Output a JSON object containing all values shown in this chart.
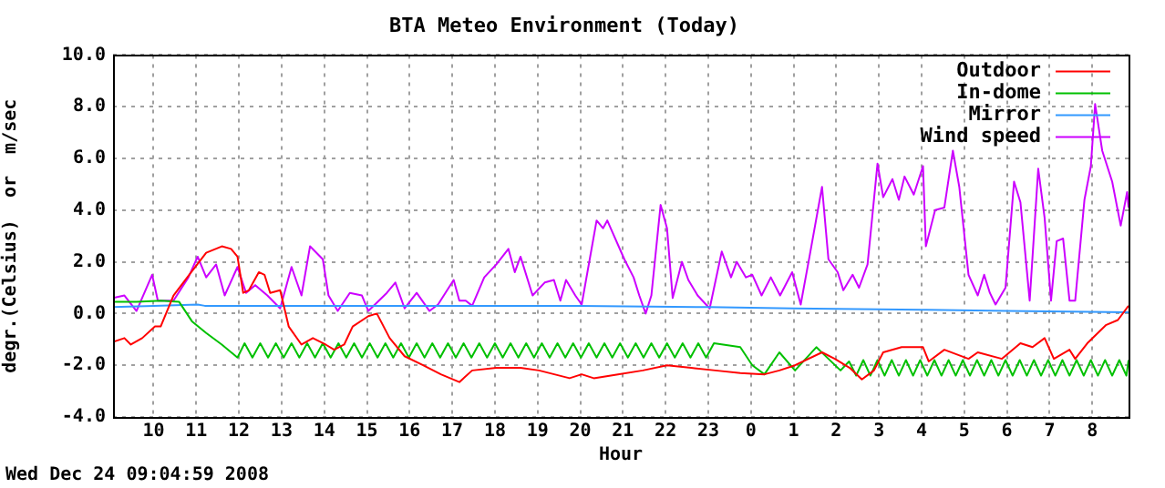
{
  "chart_data": {
    "type": "line",
    "title": "BTA Meteo Environment (Today)",
    "xlabel": "Hour",
    "ylabel": "degr.(Celsius)  or  m/sec",
    "annotations": [
      "Wed Dec 24 09:04:59 2008"
    ],
    "xlim": [
      "2008-12-23T09:03",
      "2008-12-24T08:51"
    ],
    "ylim": [
      -4,
      10
    ],
    "xticks": [
      {
        "value": "2008-12-23T10:00",
        "label": "10"
      },
      {
        "value": "2008-12-23T11:00",
        "label": "11"
      },
      {
        "value": "2008-12-23T12:00",
        "label": "12"
      },
      {
        "value": "2008-12-23T13:00",
        "label": "13"
      },
      {
        "value": "2008-12-23T14:00",
        "label": "14"
      },
      {
        "value": "2008-12-23T15:00",
        "label": "15"
      },
      {
        "value": "2008-12-23T16:00",
        "label": "16"
      },
      {
        "value": "2008-12-23T17:00",
        "label": "17"
      },
      {
        "value": "2008-12-23T18:00",
        "label": "18"
      },
      {
        "value": "2008-12-23T19:00",
        "label": "19"
      },
      {
        "value": "2008-12-23T20:00",
        "label": "20"
      },
      {
        "value": "2008-12-23T21:00",
        "label": "21"
      },
      {
        "value": "2008-12-23T22:00",
        "label": "22"
      },
      {
        "value": "2008-12-23T23:00",
        "label": "23"
      },
      {
        "value": "2008-12-24T00:00",
        "label": "0"
      },
      {
        "value": "2008-12-24T01:00",
        "label": "1"
      },
      {
        "value": "2008-12-24T02:00",
        "label": "2"
      },
      {
        "value": "2008-12-24T03:00",
        "label": "3"
      },
      {
        "value": "2008-12-24T04:00",
        "label": "4"
      },
      {
        "value": "2008-12-24T05:00",
        "label": "5"
      },
      {
        "value": "2008-12-24T06:00",
        "label": "6"
      },
      {
        "value": "2008-12-24T07:00",
        "label": "7"
      },
      {
        "value": "2008-12-24T08:00",
        "label": "8"
      }
    ],
    "yticks": [
      {
        "value": -4,
        "label": "-4.0"
      },
      {
        "value": -2,
        "label": "-2.0"
      },
      {
        "value": 0,
        "label": "0.0"
      },
      {
        "value": 2,
        "label": "2.0"
      },
      {
        "value": 4,
        "label": "4.0"
      },
      {
        "value": 6,
        "label": "6.0"
      },
      {
        "value": 8,
        "label": "8.0"
      },
      {
        "value": 10,
        "label": "10.0"
      }
    ],
    "grid": true,
    "legend": "top right",
    "marker": "none",
    "line_style": "solid",
    "series": [
      {
        "name": "Outdoor",
        "color": "#ff0000",
        "x": [
          "2008-12-23T09:03",
          "2008-12-23T09:19",
          "2008-12-23T09:28",
          "2008-12-23T09:44",
          "2008-12-23T10:02",
          "2008-12-23T10:10",
          "2008-12-23T10:28",
          "2008-12-23T10:53",
          "2008-12-23T11:14",
          "2008-12-23T11:36",
          "2008-12-23T11:49",
          "2008-12-23T11:58",
          "2008-12-23T12:06",
          "2008-12-23T12:14",
          "2008-12-23T12:28",
          "2008-12-23T12:36",
          "2008-12-23T12:44",
          "2008-12-23T12:58",
          "2008-12-23T13:10",
          "2008-12-23T13:28",
          "2008-12-23T13:44",
          "2008-12-23T14:02",
          "2008-12-23T14:14",
          "2008-12-23T14:28",
          "2008-12-23T14:40",
          "2008-12-23T15:02",
          "2008-12-23T15:14",
          "2008-12-23T15:32",
          "2008-12-23T15:53",
          "2008-12-23T16:19",
          "2008-12-23T16:44",
          "2008-12-23T17:10",
          "2008-12-23T17:28",
          "2008-12-23T18:02",
          "2008-12-23T18:36",
          "2008-12-23T19:02",
          "2008-12-23T19:45",
          "2008-12-23T20:02",
          "2008-12-23T20:19",
          "2008-12-23T20:53",
          "2008-12-23T21:28",
          "2008-12-23T22:02",
          "2008-12-23T22:36",
          "2008-12-23T23:10",
          "2008-12-23T23:45",
          "2008-12-24T00:19",
          "2008-12-24T00:40",
          "2008-12-24T01:02",
          "2008-12-24T01:40",
          "2008-12-24T01:58",
          "2008-12-24T02:19",
          "2008-12-24T02:36",
          "2008-12-24T02:53",
          "2008-12-24T03:06",
          "2008-12-24T03:32",
          "2008-12-24T04:02",
          "2008-12-24T04:10",
          "2008-12-24T04:32",
          "2008-12-24T05:06",
          "2008-12-24T05:19",
          "2008-12-24T05:53",
          "2008-12-24T06:19",
          "2008-12-24T06:36",
          "2008-12-24T06:53",
          "2008-12-24T07:06",
          "2008-12-24T07:28",
          "2008-12-24T07:36",
          "2008-12-24T07:53",
          "2008-12-24T08:19",
          "2008-12-24T08:36",
          "2008-12-24T08:51"
        ],
        "values": [
          -1.1,
          -0.95,
          -1.2,
          -0.95,
          -0.5,
          -0.5,
          0.7,
          1.6,
          2.35,
          2.6,
          2.5,
          2.2,
          0.8,
          0.9,
          1.6,
          1.5,
          0.8,
          0.9,
          -0.5,
          -1.2,
          -0.95,
          -1.2,
          -1.4,
          -1.2,
          -0.5,
          -0.1,
          0,
          -0.95,
          -1.65,
          -2,
          -2.35,
          -2.65,
          -2.2,
          -2.1,
          -2.1,
          -2.2,
          -2.5,
          -2.35,
          -2.5,
          -2.35,
          -2.2,
          -2,
          -2.1,
          -2.2,
          -2.3,
          -2.35,
          -2.2,
          -2,
          -1.5,
          -1.75,
          -2.1,
          -2.55,
          -2.2,
          -1.5,
          -1.3,
          -1.3,
          -1.85,
          -1.4,
          -1.75,
          -1.5,
          -1.75,
          -1.15,
          -1.3,
          -0.95,
          -1.75,
          -1.4,
          -1.75,
          -1.15,
          -0.45,
          -0.25,
          0.3
        ]
      },
      {
        "name": "In-dome",
        "color": "#00c000",
        "x": [
          "2008-12-23T09:03",
          "2008-12-23T09:36",
          "2008-12-23T10:10",
          "2008-12-23T10:36",
          "2008-12-23T10:54",
          "2008-12-23T11:14",
          "2008-12-23T11:36",
          "2008-12-23T11:58",
          "2008-12-23T12:08",
          "2008-12-23T12:19",
          "2008-12-23T12:30",
          "2008-12-23T12:41",
          "2008-12-23T12:52",
          "2008-12-23T13:03",
          "2008-12-23T13:14",
          "2008-12-23T13:25",
          "2008-12-23T13:36",
          "2008-12-23T13:47",
          "2008-12-23T13:58",
          "2008-12-23T14:09",
          "2008-12-23T14:20",
          "2008-12-23T14:31",
          "2008-12-23T14:42",
          "2008-12-23T14:53",
          "2008-12-23T15:04",
          "2008-12-23T15:15",
          "2008-12-23T15:26",
          "2008-12-23T15:37",
          "2008-12-23T15:48",
          "2008-12-23T15:59",
          "2008-12-23T16:10",
          "2008-12-23T16:21",
          "2008-12-23T16:32",
          "2008-12-23T16:43",
          "2008-12-23T16:54",
          "2008-12-23T17:05",
          "2008-12-23T17:16",
          "2008-12-23T17:27",
          "2008-12-23T17:38",
          "2008-12-23T17:49",
          "2008-12-23T18:00",
          "2008-12-23T18:11",
          "2008-12-23T18:22",
          "2008-12-23T18:33",
          "2008-12-23T18:44",
          "2008-12-23T18:55",
          "2008-12-23T19:06",
          "2008-12-23T19:17",
          "2008-12-23T19:28",
          "2008-12-23T19:39",
          "2008-12-23T19:50",
          "2008-12-23T20:01",
          "2008-12-23T20:12",
          "2008-12-23T20:23",
          "2008-12-23T20:34",
          "2008-12-23T20:45",
          "2008-12-23T20:56",
          "2008-12-23T21:07",
          "2008-12-23T21:18",
          "2008-12-23T21:29",
          "2008-12-23T21:40",
          "2008-12-23T21:51",
          "2008-12-23T22:02",
          "2008-12-23T22:13",
          "2008-12-23T22:24",
          "2008-12-23T22:35",
          "2008-12-23T22:46",
          "2008-12-23T22:57",
          "2008-12-23T23:08",
          "2008-12-23T23:45",
          "2008-12-24T00:02",
          "2008-12-24T00:19",
          "2008-12-24T00:40",
          "2008-12-24T01:02",
          "2008-12-24T01:32",
          "2008-12-24T01:49",
          "2008-12-24T02:06",
          "2008-12-24T02:18",
          "2008-12-24T02:28",
          "2008-12-24T02:38",
          "2008-12-24T02:48",
          "2008-12-24T02:58",
          "2008-12-24T03:08",
          "2008-12-24T03:18",
          "2008-12-24T03:28",
          "2008-12-24T03:38",
          "2008-12-24T03:48",
          "2008-12-24T03:58",
          "2008-12-24T04:08",
          "2008-12-24T04:18",
          "2008-12-24T04:28",
          "2008-12-24T04:38",
          "2008-12-24T04:48",
          "2008-12-24T04:58",
          "2008-12-24T05:08",
          "2008-12-24T05:18",
          "2008-12-24T05:28",
          "2008-12-24T05:38",
          "2008-12-24T05:48",
          "2008-12-24T05:58",
          "2008-12-24T06:08",
          "2008-12-24T06:18",
          "2008-12-24T06:28",
          "2008-12-24T06:38",
          "2008-12-24T06:48",
          "2008-12-24T06:58",
          "2008-12-24T07:08",
          "2008-12-24T07:18",
          "2008-12-24T07:28",
          "2008-12-24T07:38",
          "2008-12-24T07:48",
          "2008-12-24T07:58",
          "2008-12-24T08:08",
          "2008-12-24T08:18",
          "2008-12-24T08:28",
          "2008-12-24T08:38",
          "2008-12-24T08:48",
          "2008-12-24T08:51"
        ],
        "values": [
          0.45,
          0.45,
          0.5,
          0.45,
          -0.3,
          -0.75,
          -1.2,
          -1.7,
          -1.15,
          -1.7,
          -1.15,
          -1.7,
          -1.15,
          -1.7,
          -1.15,
          -1.7,
          -1.15,
          -1.7,
          -1.15,
          -1.7,
          -1.15,
          -1.7,
          -1.15,
          -1.7,
          -1.15,
          -1.7,
          -1.15,
          -1.7,
          -1.15,
          -1.7,
          -1.15,
          -1.7,
          -1.15,
          -1.7,
          -1.15,
          -1.7,
          -1.15,
          -1.7,
          -1.15,
          -1.7,
          -1.15,
          -1.7,
          -1.15,
          -1.7,
          -1.15,
          -1.7,
          -1.15,
          -1.7,
          -1.15,
          -1.7,
          -1.15,
          -1.7,
          -1.15,
          -1.7,
          -1.15,
          -1.7,
          -1.15,
          -1.7,
          -1.15,
          -1.7,
          -1.15,
          -1.7,
          -1.15,
          -1.7,
          -1.15,
          -1.7,
          -1.15,
          -1.7,
          -1.15,
          -1.3,
          -2,
          -2.35,
          -1.5,
          -2.2,
          -1.3,
          -1.75,
          -2.2,
          -1.85,
          -2.4,
          -1.8,
          -2.4,
          -1.8,
          -2.4,
          -1.8,
          -2.4,
          -1.8,
          -2.4,
          -1.8,
          -2.4,
          -1.8,
          -2.4,
          -1.8,
          -2.4,
          -1.8,
          -2.4,
          -1.8,
          -2.4,
          -1.8,
          -2.4,
          -1.8,
          -2.4,
          -1.8,
          -2.4,
          -1.8,
          -2.4,
          -1.8,
          -2.4,
          -1.8,
          -2.4,
          -1.8,
          -2.4,
          -1.8,
          -2.4,
          -1.8,
          -2.4,
          -1.8,
          -2.4,
          -1.8
        ]
      },
      {
        "name": "Mirror",
        "color": "#3399ff",
        "x": [
          "2008-12-23T09:03",
          "2008-12-23T10:00",
          "2008-12-23T11:02",
          "2008-12-23T11:12",
          "2008-12-23T14:00",
          "2008-12-23T17:00",
          "2008-12-23T20:00",
          "2008-12-23T23:00",
          "2008-12-24T01:00",
          "2008-12-24T04:00",
          "2008-12-24T06:00",
          "2008-12-24T08:51"
        ],
        "values": [
          0.25,
          0.3,
          0.35,
          0.3,
          0.3,
          0.3,
          0.3,
          0.25,
          0.2,
          0.15,
          0.1,
          0.05
        ]
      },
      {
        "name": "Wind speed",
        "color": "#cc00ff",
        "x": [
          "2008-12-23T09:03",
          "2008-12-23T09:19",
          "2008-12-23T09:36",
          "2008-12-23T09:58",
          "2008-12-23T10:06",
          "2008-12-23T10:28",
          "2008-12-23T10:49",
          "2008-12-23T11:02",
          "2008-12-23T11:14",
          "2008-12-23T11:28",
          "2008-12-23T11:40",
          "2008-12-23T11:58",
          "2008-12-23T12:10",
          "2008-12-23T12:23",
          "2008-12-23T12:40",
          "2008-12-23T12:58",
          "2008-12-23T13:14",
          "2008-12-23T13:28",
          "2008-12-23T13:40",
          "2008-12-23T13:58",
          "2008-12-23T14:06",
          "2008-12-23T14:19",
          "2008-12-23T14:36",
          "2008-12-23T14:53",
          "2008-12-23T15:02",
          "2008-12-23T15:28",
          "2008-12-23T15:40",
          "2008-12-23T15:53",
          "2008-12-23T16:10",
          "2008-12-23T16:28",
          "2008-12-23T16:40",
          "2008-12-23T17:02",
          "2008-12-23T17:10",
          "2008-12-23T17:19",
          "2008-12-23T17:28",
          "2008-12-23T17:45",
          "2008-12-23T18:02",
          "2008-12-23T18:19",
          "2008-12-23T18:28",
          "2008-12-23T18:36",
          "2008-12-23T18:53",
          "2008-12-23T19:10",
          "2008-12-23T19:23",
          "2008-12-23T19:32",
          "2008-12-23T19:40",
          "2008-12-23T19:53",
          "2008-12-23T20:02",
          "2008-12-23T20:23",
          "2008-12-23T20:32",
          "2008-12-23T20:38",
          "2008-12-23T21:02",
          "2008-12-23T21:15",
          "2008-12-23T21:23",
          "2008-12-23T21:32",
          "2008-12-23T21:40",
          "2008-12-23T21:53",
          "2008-12-23T22:02",
          "2008-12-23T22:10",
          "2008-12-23T22:23",
          "2008-12-23T22:32",
          "2008-12-23T22:45",
          "2008-12-23T23:02",
          "2008-12-23T23:19",
          "2008-12-23T23:32",
          "2008-12-23T23:40",
          "2008-12-23T23:53",
          "2008-12-24T00:02",
          "2008-12-24T00:15",
          "2008-12-24T00:28",
          "2008-12-24T00:41",
          "2008-12-24T00:58",
          "2008-12-24T01:10",
          "2008-12-24T01:23",
          "2008-12-24T01:40",
          "2008-12-24T01:49",
          "2008-12-24T02:02",
          "2008-12-24T02:10",
          "2008-12-24T02:23",
          "2008-12-24T02:32",
          "2008-12-24T02:44",
          "2008-12-24T02:58",
          "2008-12-24T03:06",
          "2008-12-24T03:19",
          "2008-12-24T03:28",
          "2008-12-24T03:36",
          "2008-12-24T03:49",
          "2008-12-24T04:02",
          "2008-12-24T04:06",
          "2008-12-24T04:19",
          "2008-12-24T04:32",
          "2008-12-24T04:44",
          "2008-12-24T04:53",
          "2008-12-24T05:06",
          "2008-12-24T05:19",
          "2008-12-24T05:28",
          "2008-12-24T05:36",
          "2008-12-24T05:44",
          "2008-12-24T05:58",
          "2008-12-24T06:10",
          "2008-12-24T06:19",
          "2008-12-24T06:32",
          "2008-12-24T06:44",
          "2008-12-24T06:53",
          "2008-12-24T07:02",
          "2008-12-24T07:10",
          "2008-12-24T07:19",
          "2008-12-24T07:28",
          "2008-12-24T07:36",
          "2008-12-24T07:49",
          "2008-12-24T07:58",
          "2008-12-24T08:04",
          "2008-12-24T08:14",
          "2008-12-24T08:28",
          "2008-12-24T08:40",
          "2008-12-24T08:49",
          "2008-12-24T08:51"
        ],
        "values": [
          0.6,
          0.7,
          0.1,
          1.5,
          0.5,
          0.5,
          1.4,
          2.2,
          1.4,
          1.9,
          0.7,
          1.8,
          0.8,
          1.1,
          0.7,
          0.2,
          1.8,
          0.7,
          2.6,
          2.1,
          0.7,
          0.1,
          0.8,
          0.7,
          0.1,
          0.8,
          1.2,
          0.2,
          0.8,
          0.1,
          0.35,
          1.3,
          0.5,
          0.5,
          0.3,
          1.4,
          1.9,
          2.5,
          1.6,
          2.2,
          0.7,
          1.2,
          1.3,
          0.5,
          1.3,
          0.7,
          0.35,
          3.6,
          3.3,
          3.6,
          2.1,
          1.4,
          0.7,
          0,
          0.7,
          4.2,
          3.3,
          0.6,
          2,
          1.3,
          0.7,
          0.2,
          2.4,
          1.4,
          2,
          1.4,
          1.5,
          0.7,
          1.4,
          0.7,
          1.6,
          0.35,
          2.3,
          4.9,
          2.1,
          1.6,
          0.9,
          1.5,
          1,
          1.9,
          5.8,
          4.5,
          5.2,
          4.4,
          5.3,
          4.6,
          5.7,
          2.6,
          4,
          4.1,
          6.3,
          4.9,
          1.5,
          0.7,
          1.5,
          0.8,
          0.35,
          1,
          5.1,
          4.3,
          0.5,
          5.6,
          3.7,
          0.5,
          2.8,
          2.9,
          0.5,
          0.5,
          4.4,
          5.7,
          8.1,
          6.3,
          5.1,
          3.4,
          4.7,
          4.1
        ]
      }
    ]
  }
}
